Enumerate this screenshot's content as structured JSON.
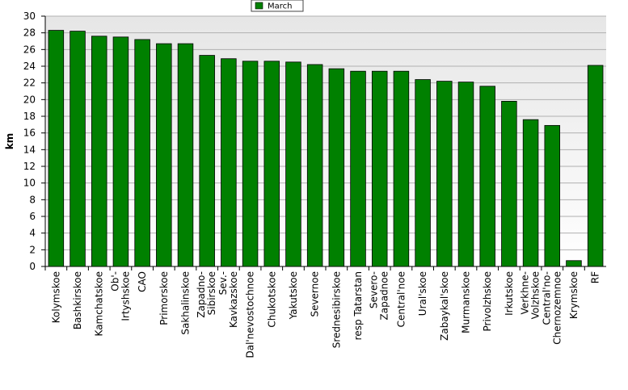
{
  "chart_data": {
    "type": "bar",
    "y_label": "km",
    "categories": [
      "Kolymskoe",
      "Bashkirskoe",
      "Kamchatskoe",
      "Ob'-Irtyshskoe",
      "CAO",
      "Primorskoe",
      "Sakhalinskoe",
      "Zapadno-Sibirskoe",
      "Sev.-Kavkazskoe",
      "Dal'nevostochnoe",
      "Chukotskoe",
      "Yakutskoe",
      "Severnoe",
      "Srednesibirskoe",
      "resp Tatarstan",
      "Severo-Zapadnoe",
      "Central'noe",
      "Ural'skoe",
      "Zabaykal'skoe",
      "Murmanskoe",
      "Privolzhskoe",
      "Irkutskoe",
      "Verkhne-Volzhskoe",
      "Central'no-Chernozemnoe",
      "Krymskoe",
      "RF"
    ],
    "series": [
      {
        "name": "March",
        "color": "#008000",
        "values": [
          28.3,
          28.2,
          27.6,
          27.5,
          27.2,
          26.7,
          26.7,
          25.3,
          24.9,
          24.6,
          24.6,
          24.5,
          24.2,
          23.7,
          23.4,
          23.4,
          23.4,
          22.4,
          22.2,
          22.1,
          21.6,
          19.8,
          17.6,
          16.9,
          0.7,
          24.1
        ]
      }
    ],
    "ylim": [
      0,
      30
    ],
    "yticks": [
      0,
      2,
      4,
      6,
      8,
      10,
      12,
      14,
      16,
      18,
      20,
      22,
      24,
      26,
      28,
      30
    ],
    "grid": true,
    "legend": "top"
  }
}
